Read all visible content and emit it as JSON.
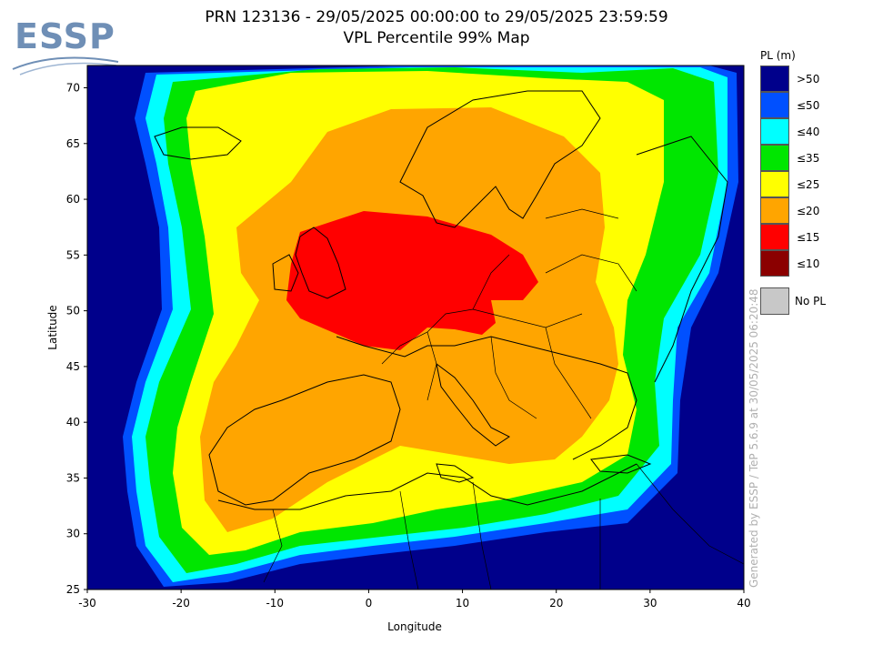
{
  "logo": {
    "text": "ESSP"
  },
  "title": {
    "line1": "PRN 123136 - 29/05/2025 00:00:00 to 29/05/2025 23:59:59",
    "line2": "VPL Percentile 99% Map"
  },
  "map": {
    "lon_range": [
      -30,
      40
    ],
    "lat_range": [
      25,
      72
    ],
    "x_ticks": [
      -30,
      -20,
      -10,
      0,
      10,
      20,
      30,
      40
    ],
    "y_ticks": [
      25,
      30,
      35,
      40,
      45,
      50,
      55,
      60,
      65,
      70
    ],
    "x_ticks_text": [
      "-30",
      "-20",
      "-10",
      "0",
      "10",
      "20",
      "30",
      "40"
    ],
    "y_ticks_text": [
      "25",
      "30",
      "35",
      "40",
      "45",
      "50",
      "55",
      "60",
      "65",
      "70"
    ],
    "xlabel": "Longitude",
    "ylabel": "Latitude",
    "zone_colors": {
      "gt50": "#00008b",
      "le50": "#0050ff",
      "le40": "#00ffff",
      "le35": "#00e600",
      "le25": "#ffff00",
      "le20": "#ffa500",
      "le15": "#ff0000"
    }
  },
  "legend": {
    "title": "PL (m)",
    "items": [
      {
        "label": ">50",
        "color": "#00008b"
      },
      {
        "label": "≤50",
        "color": "#0050ff"
      },
      {
        "label": "≤40",
        "color": "#00ffff"
      },
      {
        "label": "≤35",
        "color": "#00e600"
      },
      {
        "label": "≤25",
        "color": "#ffff00"
      },
      {
        "label": "≤20",
        "color": "#ffa500"
      },
      {
        "label": "≤15",
        "color": "#ff0000"
      },
      {
        "label": "≤10",
        "color": "#8b0000"
      }
    ],
    "no_pl": {
      "label": "No PL",
      "color": "#c8c8c8"
    }
  },
  "generated_note": "Generated by ESSP / TeP 5.6.9 at 30/05/2025 06:20:48"
}
